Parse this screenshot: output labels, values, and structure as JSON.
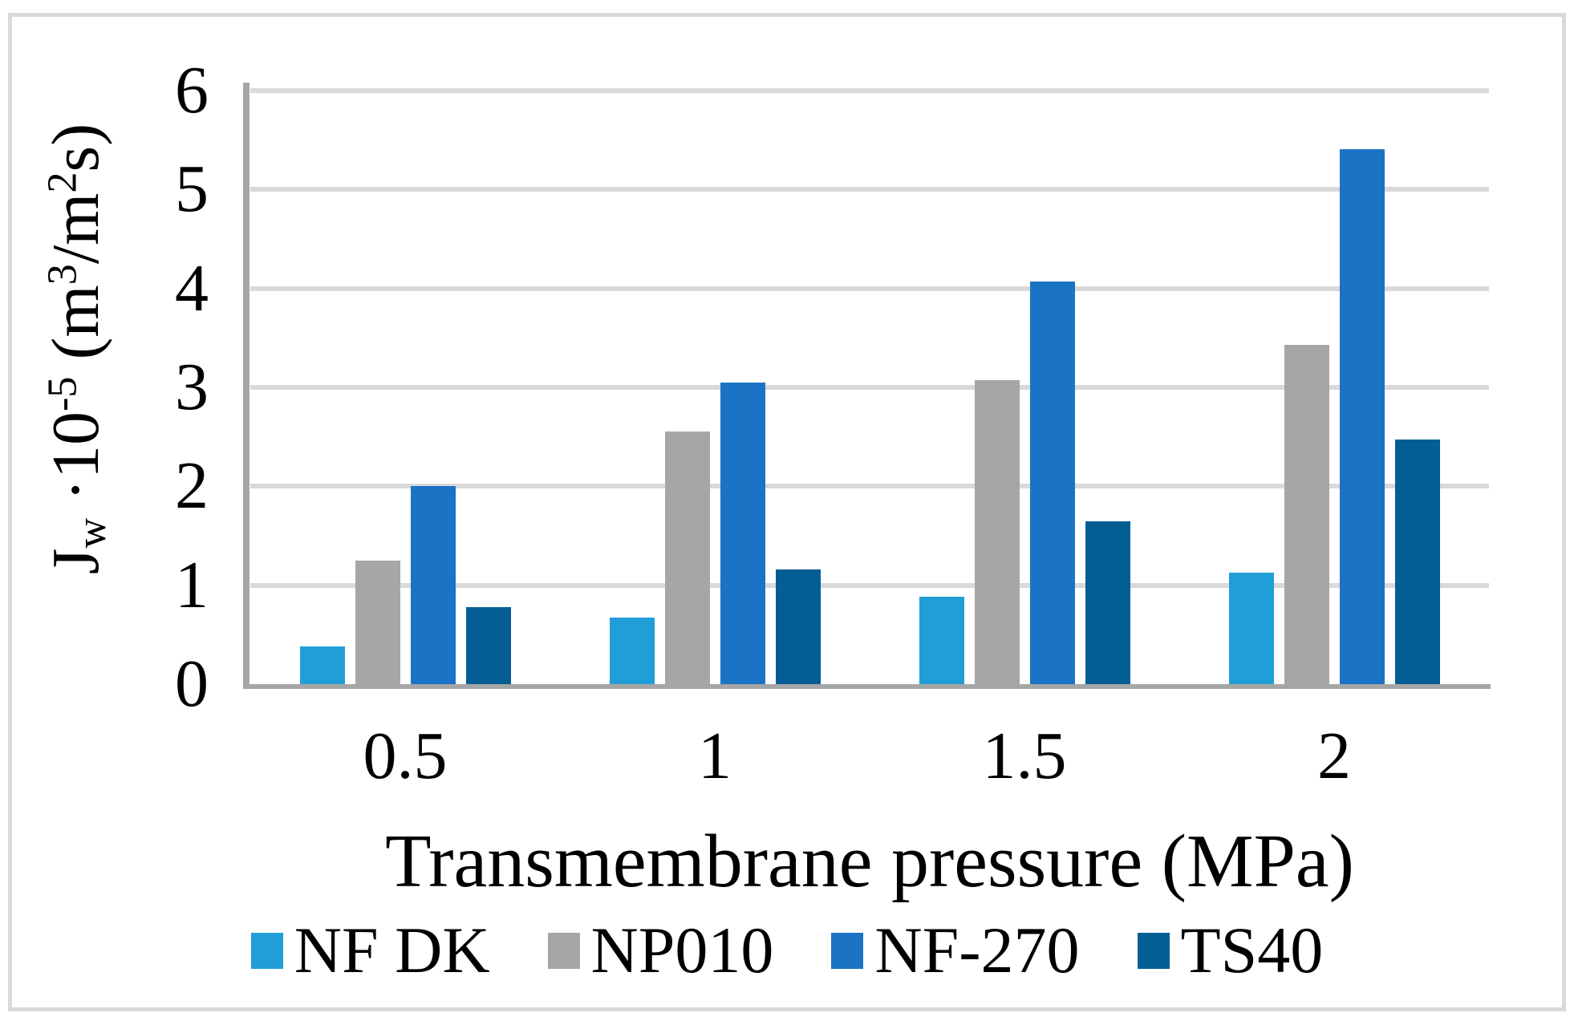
{
  "chart_data": {
    "type": "bar",
    "title": "",
    "xlabel": "Transmembrane pressure (MPa)",
    "ylabel_text": "Jw ·10-5 (m3/m2s)",
    "ylabel_segments": [
      {
        "text": "J",
        "style": "normal"
      },
      {
        "text": "w",
        "style": "sub"
      },
      {
        "text": " ·10",
        "style": "normal"
      },
      {
        "text": "-5",
        "style": "sup"
      },
      {
        "text": " (m",
        "style": "normal"
      },
      {
        "text": "3",
        "style": "sup"
      },
      {
        "text": "/m",
        "style": "normal"
      },
      {
        "text": "2",
        "style": "sup"
      },
      {
        "text": "s)",
        "style": "normal"
      }
    ],
    "categories": [
      "0.5",
      "1",
      "1.5",
      "2"
    ],
    "series": [
      {
        "name": "NF DK",
        "color": "#219ED8",
        "values": [
          0.38,
          0.67,
          0.88,
          1.13
        ]
      },
      {
        "name": "NP010",
        "color": "#A6A6A6",
        "values": [
          1.25,
          2.55,
          3.07,
          3.43
        ]
      },
      {
        "name": "NF-270",
        "color": "#1B73C6",
        "values": [
          2.0,
          3.05,
          4.07,
          5.41
        ]
      },
      {
        "name": "TS40",
        "color": "#045E94",
        "values": [
          0.78,
          1.16,
          1.65,
          2.47
        ]
      }
    ],
    "y_ticks": [
      0,
      1,
      2,
      3,
      4,
      5,
      6
    ],
    "ylim": [
      0,
      6
    ],
    "grid": true,
    "legend_position": "bottom",
    "colors": {
      "gridline": "#D9D9D9",
      "axis": "#A6A6A6",
      "frame": "#D9D9D9",
      "background": "#FFFFFF"
    }
  }
}
